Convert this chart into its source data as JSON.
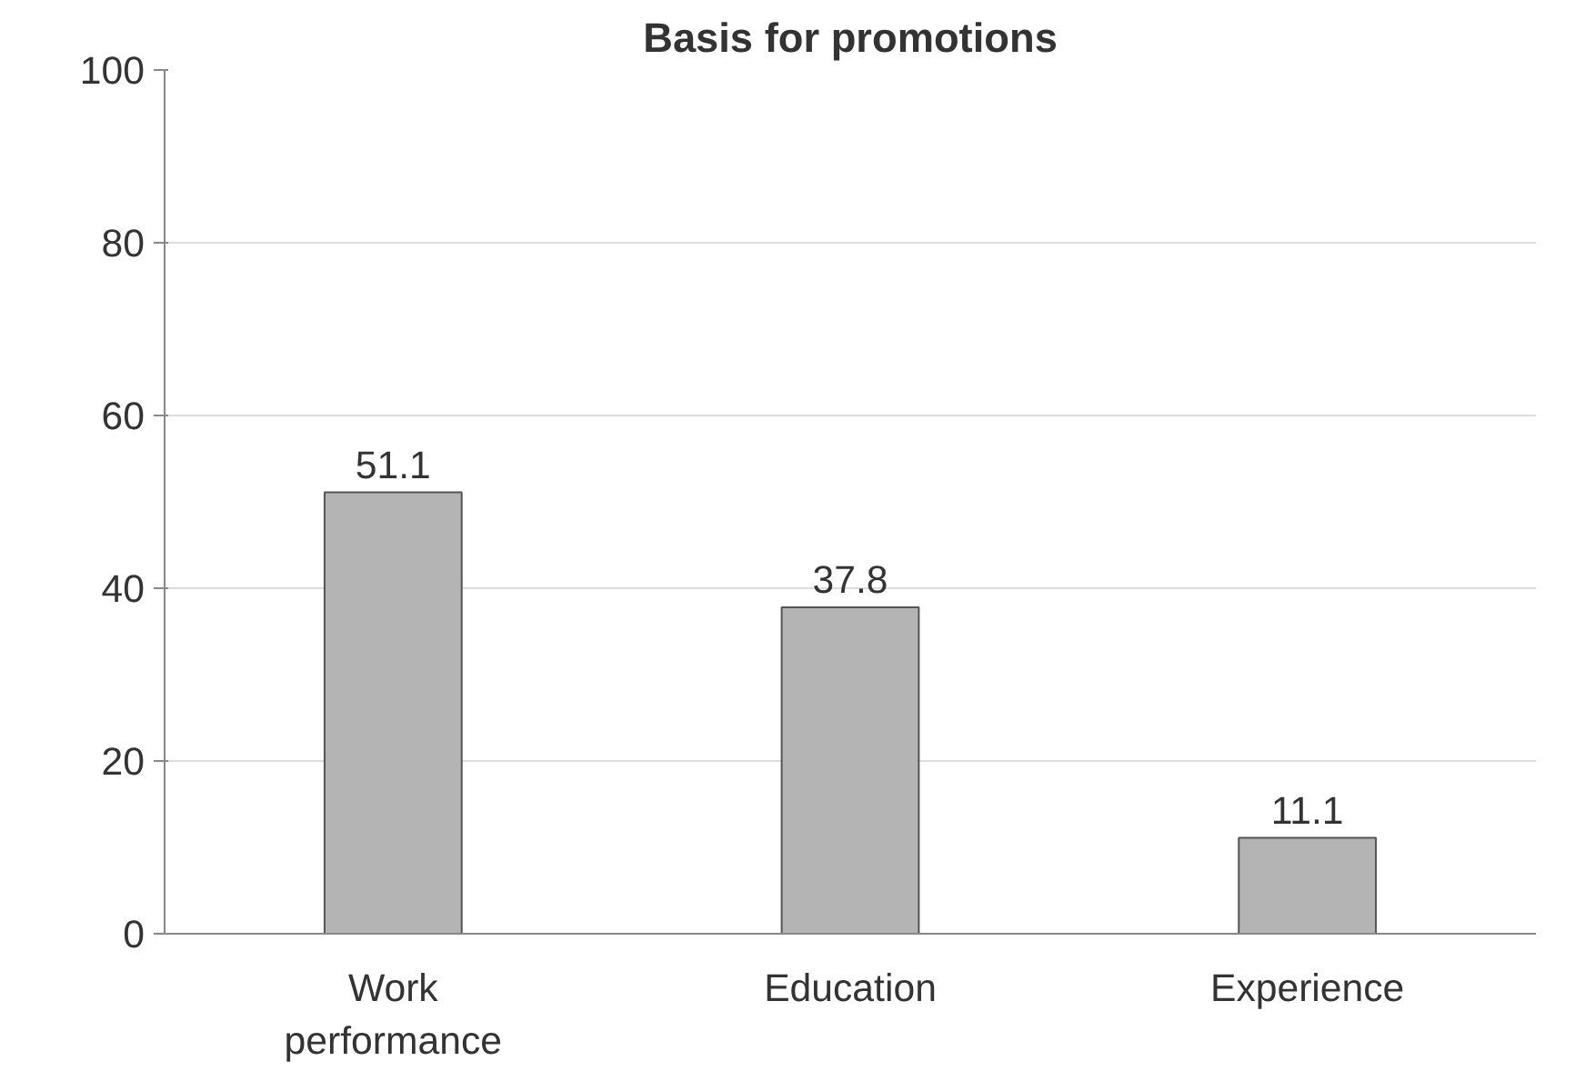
{
  "chart_data": {
    "type": "bar",
    "title": "Basis for promotions",
    "categories": [
      "Work performance",
      "Education",
      "Experience"
    ],
    "values": [
      51.1,
      37.8,
      11.1
    ],
    "color": "#b4b4b4",
    "ylim": [
      0,
      100
    ],
    "yticks": [
      0,
      20,
      40,
      60,
      80,
      100
    ],
    "grid": "y",
    "data_labels": true
  }
}
